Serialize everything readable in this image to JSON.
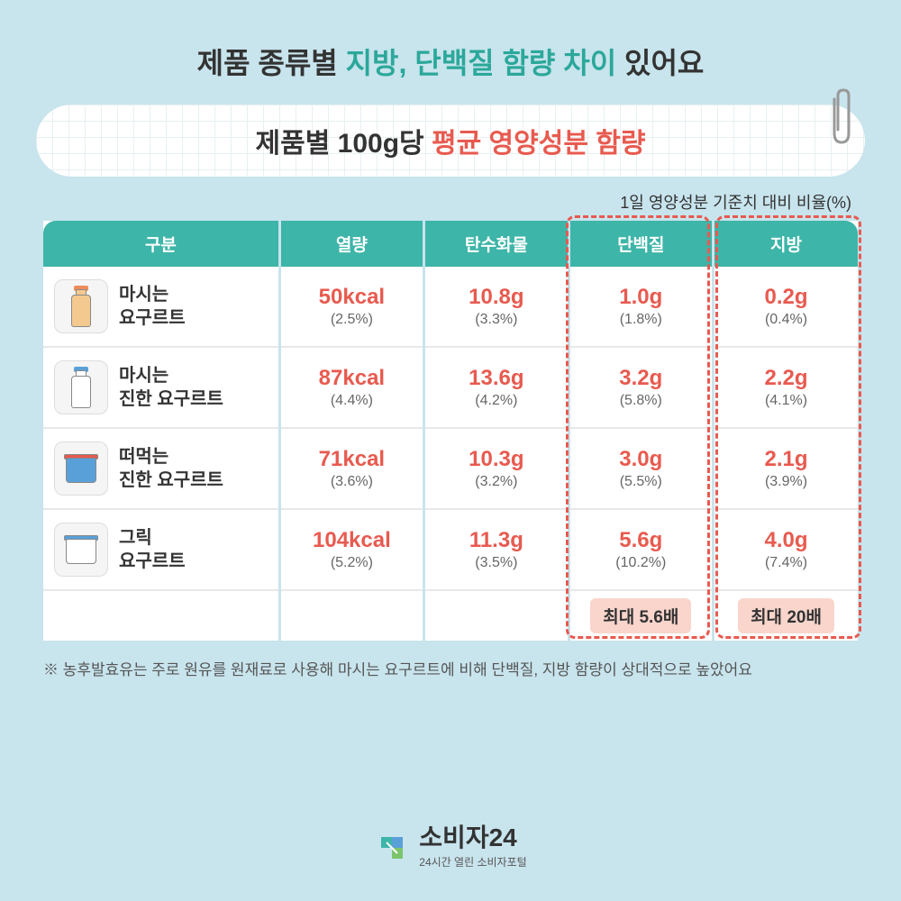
{
  "title_pre": "제품 종류별 ",
  "title_hl": "지방, 단백질 함량 차이",
  "title_post": " 있어요",
  "subtitle_pre": "제품별 100g당 ",
  "subtitle_accent": "평균 영양성분 함량",
  "note": "1일 영양성분 기준치 대비 비율(%)",
  "columns": [
    "구분",
    "열량",
    "탄수화물",
    "단백질",
    "지방"
  ],
  "rows": [
    {
      "name": "마시는<br>요구르트",
      "icon": "bottle",
      "body_color": "#f4c98f",
      "cap_color": "#f08c5a",
      "values": [
        {
          "main": "50kcal",
          "sub": "(2.5%)"
        },
        {
          "main": "10.8g",
          "sub": "(3.3%)"
        },
        {
          "main": "1.0g",
          "sub": "(1.8%)"
        },
        {
          "main": "0.2g",
          "sub": "(0.4%)"
        }
      ]
    },
    {
      "name": "마시는<br>진한 요구르트",
      "icon": "bottle",
      "body_color": "#ffffff",
      "cap_color": "#5aa0d8",
      "values": [
        {
          "main": "87kcal",
          "sub": "(4.4%)"
        },
        {
          "main": "13.6g",
          "sub": "(4.2%)"
        },
        {
          "main": "3.2g",
          "sub": "(5.8%)"
        },
        {
          "main": "2.2g",
          "sub": "(4.1%)"
        }
      ]
    },
    {
      "name": "떠먹는<br>진한 요구르트",
      "icon": "cup",
      "body_color": "#5aa0d8",
      "cap_color": "#e85a4f",
      "values": [
        {
          "main": "71kcal",
          "sub": "(3.6%)"
        },
        {
          "main": "10.3g",
          "sub": "(3.2%)"
        },
        {
          "main": "3.0g",
          "sub": "(5.5%)"
        },
        {
          "main": "2.1g",
          "sub": "(3.9%)"
        }
      ]
    },
    {
      "name": "그릭<br>요구르트",
      "icon": "cup",
      "body_color": "#ffffff",
      "cap_color": "#5aa0d8",
      "values": [
        {
          "main": "104kcal",
          "sub": "(5.2%)"
        },
        {
          "main": "11.3g",
          "sub": "(3.5%)"
        },
        {
          "main": "5.6g",
          "sub": "(10.2%)"
        },
        {
          "main": "4.0g",
          "sub": "(7.4%)"
        }
      ]
    }
  ],
  "summary": {
    "protein": "최대 5.6배",
    "fat": "최대 20배"
  },
  "footnote": "※ 농후발효유는 주로 원유를 원재료로 사용해 마시는 요구르트에 비해 단백질, 지방 함량이 상대적으로 높았어요",
  "footer_main": "소비자24",
  "footer_sub": "24시간 열린 소비자포털",
  "colors": {
    "header": "#3db5a8",
    "accent": "#e85a4f",
    "bg": "#c8e4ed",
    "badge_bg": "#f9d5cc"
  }
}
